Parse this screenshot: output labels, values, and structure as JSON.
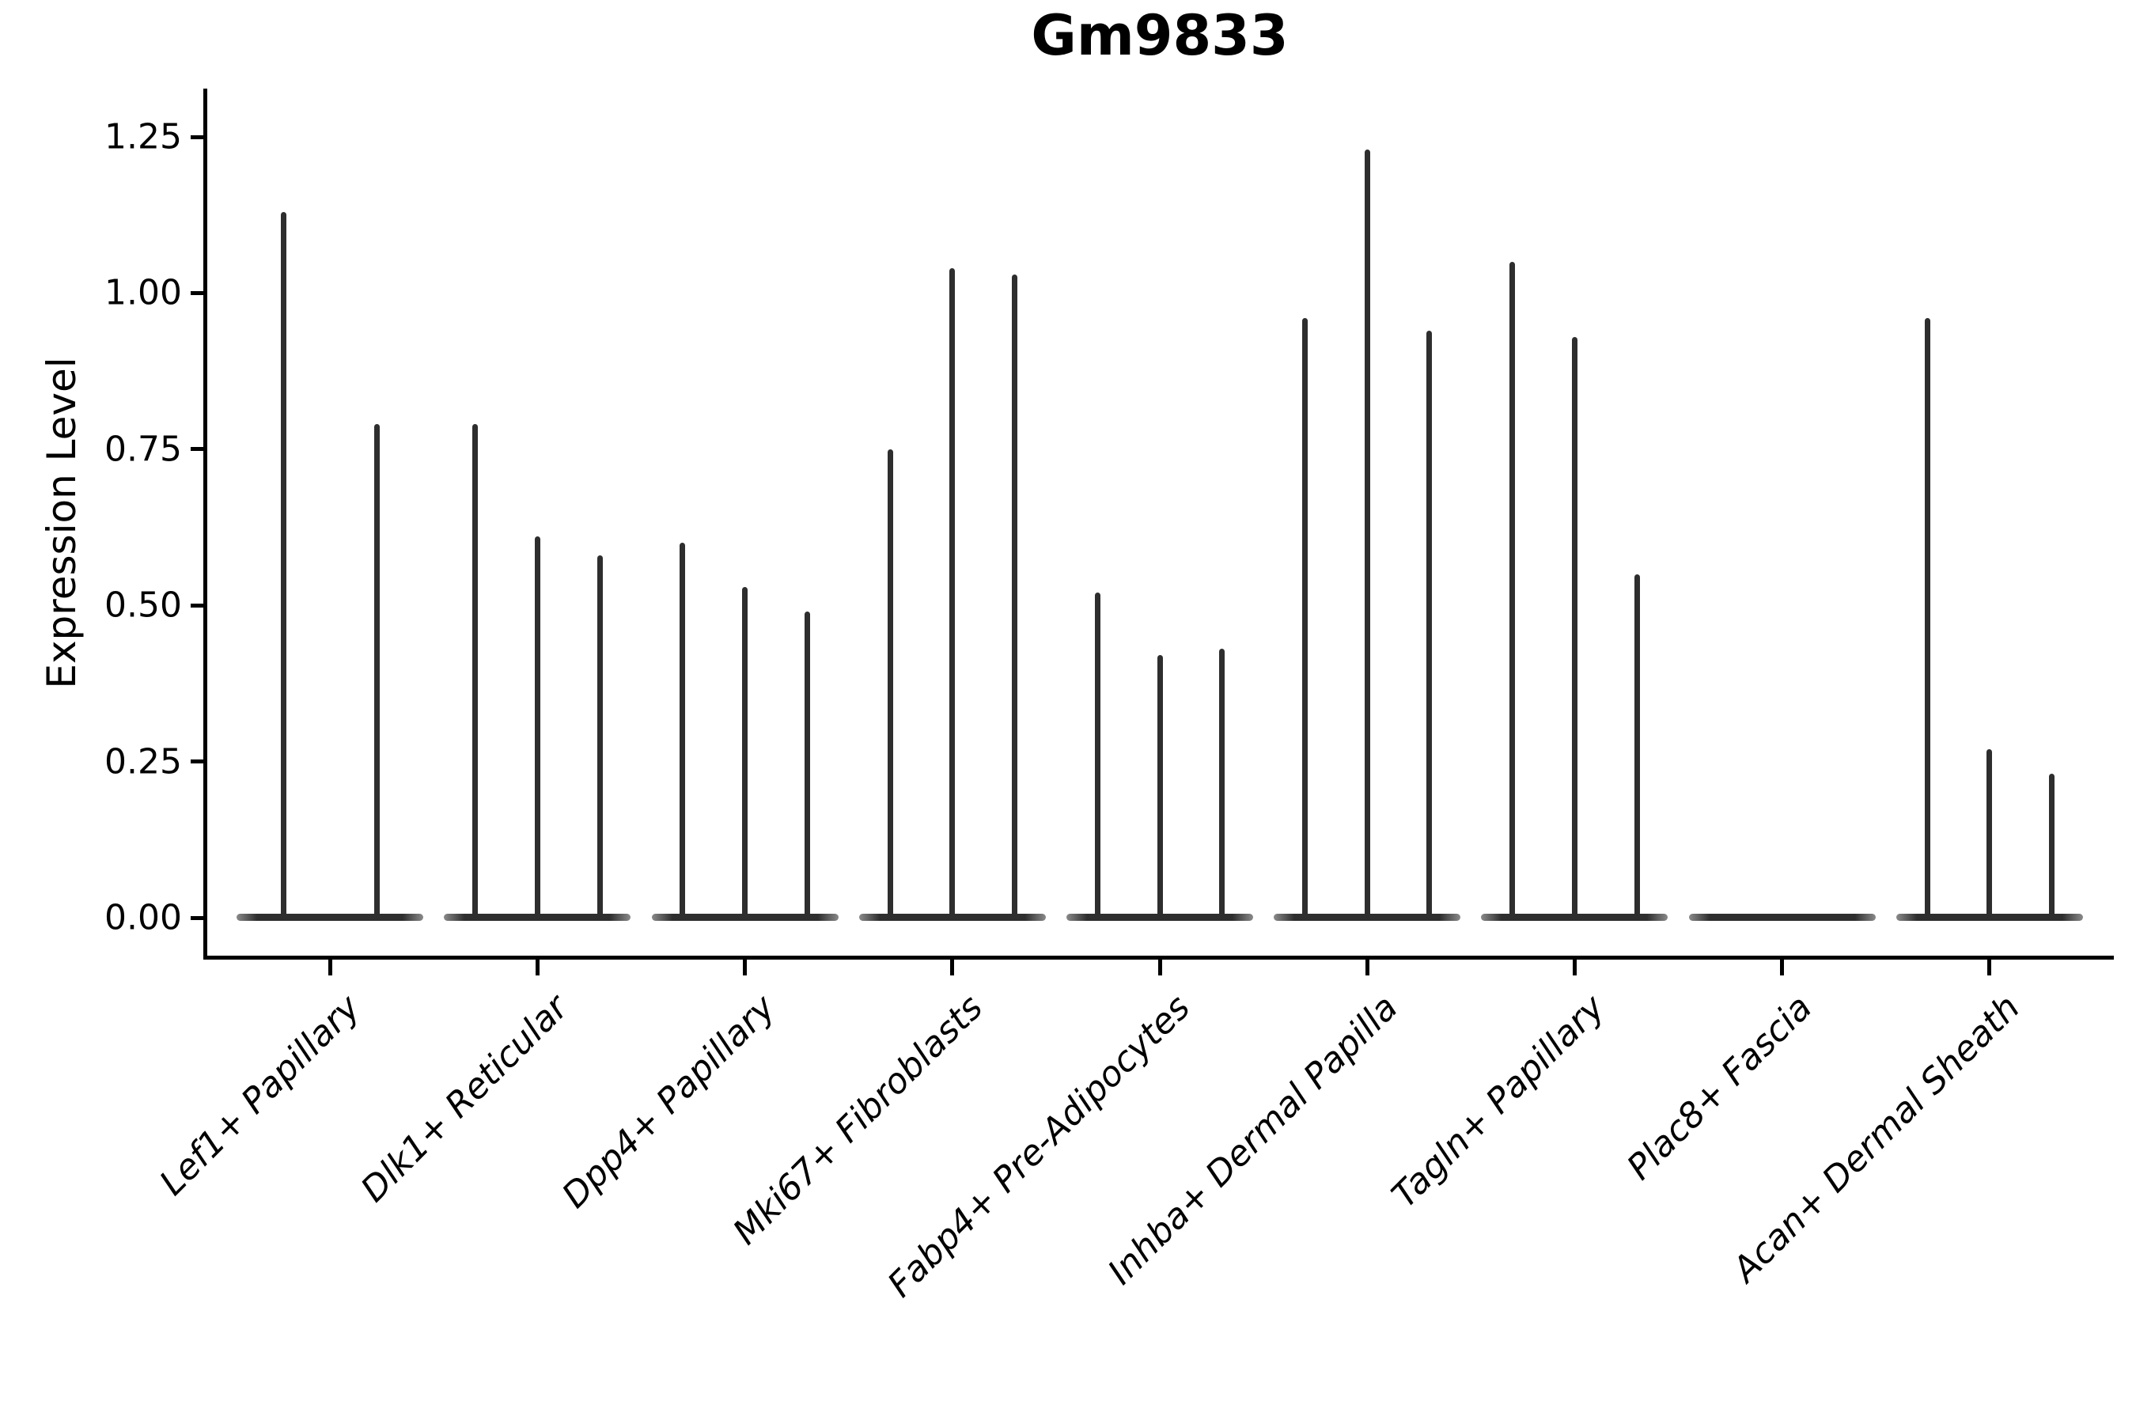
{
  "chart_data": {
    "type": "violin",
    "title": "Gm9833",
    "ylabel": "Expression Level",
    "xlabel": "",
    "ylim": [
      -0.06,
      1.33
    ],
    "yticks": [
      0,
      0.25,
      0.5,
      0.75,
      1,
      1.25
    ],
    "grid": false,
    "legend": "none",
    "style_note": "sparse single-cell expression violins: wide flat density at 0 with thin spikes up to the max expressed value",
    "categories": [
      "Lef1+ Papillary",
      "Dlk1+ Reticular",
      "Dpp4+ Papillary",
      "Mki67+ Fibroblasts",
      "Fabp4+ Pre-Adipocytes",
      "Inhba+ Dermal Papilla",
      "Tagln+ Papillary",
      "Plac8+ Fascia",
      "Acan+ Dermal Sheath"
    ],
    "groups": [
      {
        "label": "Lef1+ Papillary",
        "violin_max_values": [
          1.13,
          0.79
        ]
      },
      {
        "label": "Dlk1+ Reticular",
        "violin_max_values": [
          0.79,
          0.61,
          0.58
        ]
      },
      {
        "label": "Dpp4+ Papillary",
        "violin_max_values": [
          0.6,
          0.53,
          0.49
        ]
      },
      {
        "label": "Mki67+ Fibroblasts",
        "violin_max_values": [
          0.75,
          1.04,
          1.03
        ]
      },
      {
        "label": "Fabp4+ Pre-Adipocytes",
        "violin_max_values": [
          0.52,
          0.42,
          0.43
        ]
      },
      {
        "label": "Inhba+ Dermal Papilla",
        "violin_max_values": [
          0.96,
          1.23,
          0.94
        ]
      },
      {
        "label": "Tagln+ Papillary",
        "violin_max_values": [
          1.05,
          0.93,
          0.55
        ]
      },
      {
        "label": "Plac8+ Fascia",
        "violin_max_values": [
          0.0,
          0.0,
          0.0
        ]
      },
      {
        "label": "Acan+ Dermal Sheath",
        "violin_max_values": [
          0.96,
          0.27,
          0.23
        ]
      }
    ],
    "colors": {
      "violin": "#2e2e2e",
      "axis": "#000000",
      "text": "#000000",
      "background": "#ffffff"
    }
  }
}
